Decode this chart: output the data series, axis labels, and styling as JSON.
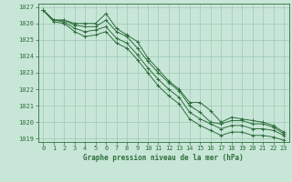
{
  "title": "Graphe pression niveau de la mer (hPa)",
  "background_color": "#c8e6d8",
  "plot_bg_color": "#c8e6d8",
  "grid_color": "#9ec8b4",
  "line_color": "#2d6e3a",
  "marker_color": "#2d6e3a",
  "xlim": [
    -0.5,
    23.5
  ],
  "ylim": [
    1018.8,
    1027.2
  ],
  "xticks": [
    0,
    1,
    2,
    3,
    4,
    5,
    6,
    7,
    8,
    9,
    10,
    11,
    12,
    13,
    14,
    15,
    16,
    17,
    18,
    19,
    20,
    21,
    22,
    23
  ],
  "yticks": [
    1019,
    1020,
    1021,
    1022,
    1023,
    1024,
    1025,
    1026,
    1027
  ],
  "series": [
    [
      1026.8,
      1026.2,
      1026.2,
      1026.0,
      1026.0,
      1026.0,
      1026.6,
      1025.7,
      1025.3,
      1024.9,
      1023.9,
      1023.2,
      1022.5,
      1022.0,
      1021.2,
      1021.2,
      1020.7,
      1020.0,
      1020.3,
      1020.2,
      1020.1,
      1020.0,
      1019.8,
      1019.4
    ],
    [
      1026.8,
      1026.2,
      1026.2,
      1025.9,
      1025.8,
      1025.8,
      1026.2,
      1025.5,
      1025.2,
      1024.5,
      1023.7,
      1023.0,
      1022.4,
      1021.9,
      1021.0,
      1020.6,
      1020.0,
      1019.9,
      1020.1,
      1020.1,
      1019.9,
      1019.9,
      1019.7,
      1019.3
    ],
    [
      1026.8,
      1026.2,
      1026.1,
      1025.7,
      1025.5,
      1025.6,
      1025.8,
      1025.1,
      1024.8,
      1024.1,
      1023.3,
      1022.6,
      1022.0,
      1021.5,
      1020.6,
      1020.2,
      1019.9,
      1019.6,
      1019.8,
      1019.8,
      1019.6,
      1019.6,
      1019.5,
      1019.2
    ],
    [
      1026.8,
      1026.1,
      1026.0,
      1025.5,
      1025.2,
      1025.3,
      1025.5,
      1024.8,
      1024.5,
      1023.8,
      1023.0,
      1022.2,
      1021.6,
      1021.1,
      1020.2,
      1019.8,
      1019.5,
      1019.2,
      1019.4,
      1019.4,
      1019.2,
      1019.2,
      1019.1,
      1018.9
    ]
  ]
}
